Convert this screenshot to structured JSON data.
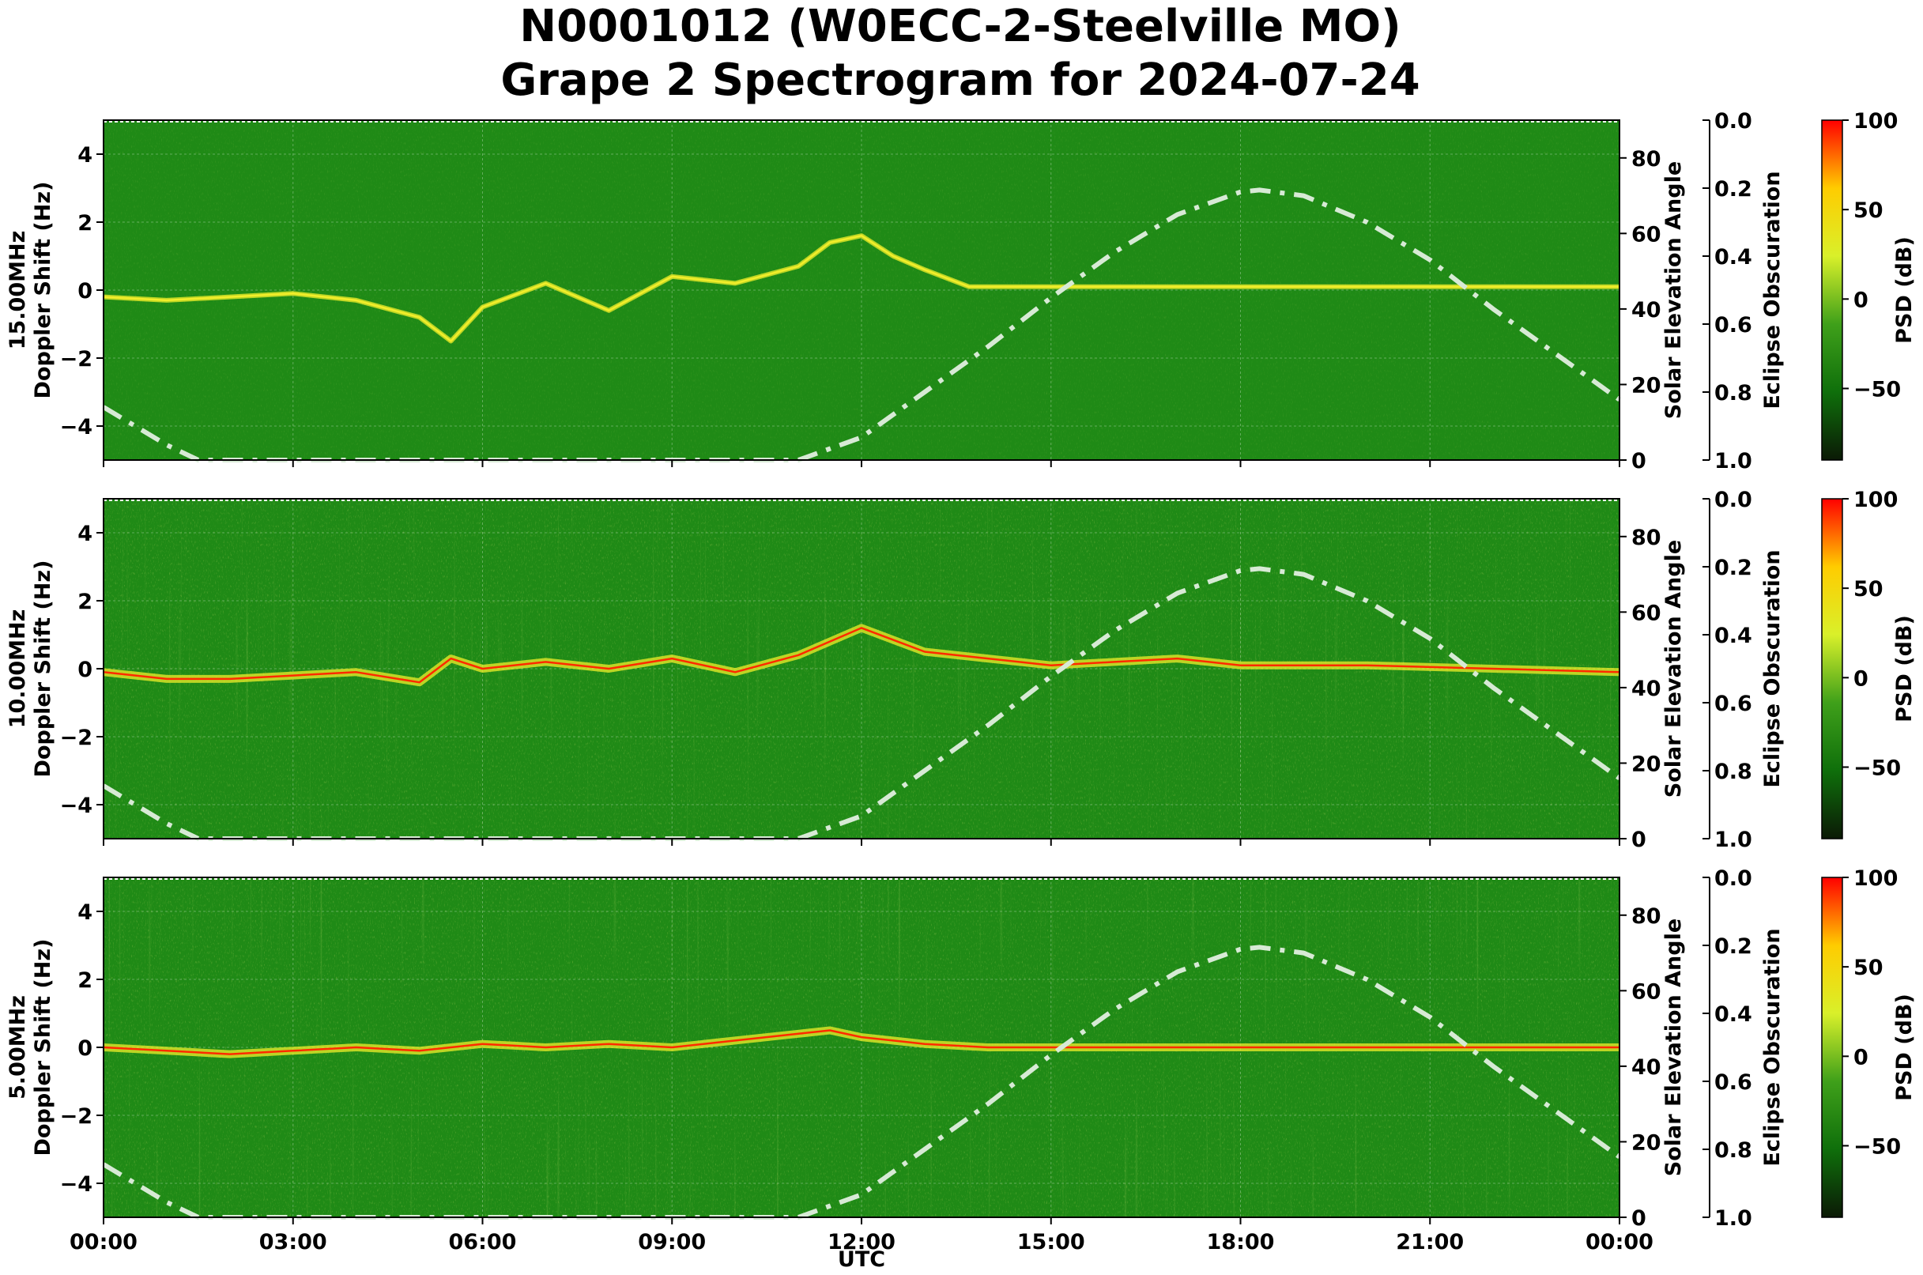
{
  "figure": {
    "title_line1": "N0001012 (W0ECC-2-Steelville MO)",
    "title_line2": "Grape 2 Spectrogram for 2024-07-24"
  },
  "colors": {
    "background_green": "#1f8a16",
    "trace_yellow": "#f2ee2a",
    "trace_red": "#ff2a00",
    "solar_curve": "#d7ead5",
    "colorbar_stops": [
      "#0b1a06",
      "#0f6f0b",
      "#3fa01a",
      "#d9f02a",
      "#ffcc00",
      "#ff0000"
    ]
  },
  "chart_data": [
    {
      "type": "heatmap",
      "panel": "15.00MHz",
      "ylabel_line1": "15.00MHz",
      "ylabel_line2": "Doppler Shift (Hz)",
      "ylim": [
        -5,
        5
      ],
      "yticks": [
        -4,
        -2,
        0,
        2,
        4
      ],
      "right_axis": {
        "label": "Solar Elevation Angle",
        "ylim": [
          0,
          90
        ],
        "ticks": [
          0,
          20,
          40,
          60,
          80
        ]
      },
      "eclipse_axis": {
        "label": "Eclipse Obscuration",
        "ylim": [
          1.0,
          0.0
        ],
        "ticks": [
          "0.0",
          "0.2",
          "0.4",
          "0.6",
          "0.8",
          "1.0"
        ]
      },
      "colorbar": {
        "label": "PSD (dB)",
        "range": [
          -90,
          100
        ],
        "ticks": [
          "100",
          "50",
          "0",
          "−50"
        ]
      },
      "solar_elevation": {
        "hours": [
          0,
          1,
          1.5,
          11,
          12,
          13,
          14,
          15,
          16,
          17,
          18,
          18.3,
          19,
          20,
          21,
          22,
          23,
          24
        ],
        "deg": [
          14,
          4,
          0,
          0,
          6,
          18,
          30,
          43,
          55,
          65,
          71,
          71.5,
          70,
          63,
          53,
          40,
          28,
          16
        ]
      },
      "doppler_trace": {
        "hours": [
          0,
          1,
          2,
          3,
          4,
          5,
          5.5,
          6,
          7,
          8,
          9,
          10,
          11,
          11.5,
          12,
          12.5,
          13,
          13.7,
          15,
          17,
          18,
          21,
          24
        ],
        "hz": [
          -0.2,
          -0.3,
          -0.2,
          -0.1,
          -0.3,
          -0.8,
          -1.5,
          -0.5,
          0.2,
          -0.6,
          0.4,
          0.2,
          0.7,
          1.4,
          1.6,
          1.0,
          0.6,
          0.1,
          0.1,
          0.1,
          0.1,
          0.1,
          0.1
        ]
      }
    },
    {
      "type": "heatmap",
      "panel": "10.00MHz",
      "ylabel_line1": "10.00MHz",
      "ylabel_line2": "Doppler Shift (Hz)",
      "ylim": [
        -5,
        5
      ],
      "yticks": [
        -4,
        -2,
        0,
        2,
        4
      ],
      "right_axis": {
        "label": "Solar Elevation Angle",
        "ylim": [
          0,
          90
        ],
        "ticks": [
          0,
          20,
          40,
          60,
          80
        ]
      },
      "eclipse_axis": {
        "label": "Eclipse Obscuration",
        "ylim": [
          1.0,
          0.0
        ],
        "ticks": [
          "0.0",
          "0.2",
          "0.4",
          "0.6",
          "0.8",
          "1.0"
        ]
      },
      "colorbar": {
        "label": "PSD (dB)",
        "range": [
          -90,
          100
        ],
        "ticks": [
          "100",
          "50",
          "0",
          "−50"
        ]
      },
      "solar_elevation": {
        "hours": [
          0,
          1,
          1.5,
          11,
          12,
          13,
          14,
          15,
          16,
          17,
          18,
          18.3,
          19,
          20,
          21,
          22,
          23,
          24
        ],
        "deg": [
          14,
          4,
          0,
          0,
          6,
          18,
          30,
          43,
          55,
          65,
          71,
          71.5,
          70,
          63,
          53,
          40,
          28,
          16
        ]
      },
      "doppler_trace": {
        "hours": [
          0,
          1,
          2,
          3,
          4,
          5,
          5.5,
          6,
          7,
          8,
          9,
          10,
          11,
          12,
          13,
          14,
          15,
          16,
          17,
          18,
          20,
          22,
          24
        ],
        "hz": [
          -0.1,
          -0.3,
          -0.3,
          -0.2,
          -0.1,
          -0.4,
          0.3,
          0.0,
          0.2,
          0.0,
          0.3,
          -0.1,
          0.4,
          1.2,
          0.5,
          0.3,
          0.1,
          0.2,
          0.3,
          0.1,
          0.1,
          0.0,
          -0.1
        ]
      }
    },
    {
      "type": "heatmap",
      "panel": "5.00MHz",
      "ylabel_line1": "5.00MHz",
      "ylabel_line2": "Doppler Shift (Hz)",
      "ylim": [
        -5,
        5
      ],
      "yticks": [
        -4,
        -2,
        0,
        2,
        4
      ],
      "right_axis": {
        "label": "Solar Elevation Angle",
        "ylim": [
          0,
          90
        ],
        "ticks": [
          0,
          20,
          40,
          60,
          80
        ]
      },
      "eclipse_axis": {
        "label": "Eclipse Obscuration",
        "ylim": [
          1.0,
          0.0
        ],
        "ticks": [
          "0.0",
          "0.2",
          "0.4",
          "0.6",
          "0.8",
          "1.0"
        ]
      },
      "colorbar": {
        "label": "PSD (dB)",
        "range": [
          -90,
          100
        ],
        "ticks": [
          "100",
          "50",
          "0",
          "−50"
        ]
      },
      "solar_elevation": {
        "hours": [
          0,
          1,
          1.5,
          11,
          12,
          13,
          14,
          15,
          16,
          17,
          18,
          18.3,
          19,
          20,
          21,
          22,
          23,
          24
        ],
        "deg": [
          14,
          4,
          0,
          0,
          6,
          18,
          30,
          43,
          55,
          65,
          71,
          71.5,
          70,
          63,
          53,
          40,
          28,
          16
        ]
      },
      "doppler_trace": {
        "hours": [
          0,
          1,
          2,
          3,
          4,
          5,
          6,
          7,
          8,
          9,
          10,
          11,
          11.5,
          12,
          13,
          14,
          15,
          16,
          17,
          18,
          20,
          22,
          24
        ],
        "hz": [
          0.0,
          -0.1,
          -0.2,
          -0.1,
          0.0,
          -0.1,
          0.1,
          0.0,
          0.1,
          0.0,
          0.2,
          0.4,
          0.5,
          0.3,
          0.1,
          0.0,
          0.0,
          0.0,
          0.0,
          0.0,
          0.0,
          0.0,
          0.0
        ]
      }
    }
  ],
  "x_axis": {
    "label": "UTC",
    "tick_hours": [
      0,
      3,
      6,
      9,
      12,
      15,
      18,
      21,
      24
    ],
    "tick_labels": [
      "00:00",
      "03:00",
      "06:00",
      "09:00",
      "12:00",
      "15:00",
      "18:00",
      "21:00",
      "00:00"
    ],
    "range_hours": [
      0,
      24
    ]
  }
}
